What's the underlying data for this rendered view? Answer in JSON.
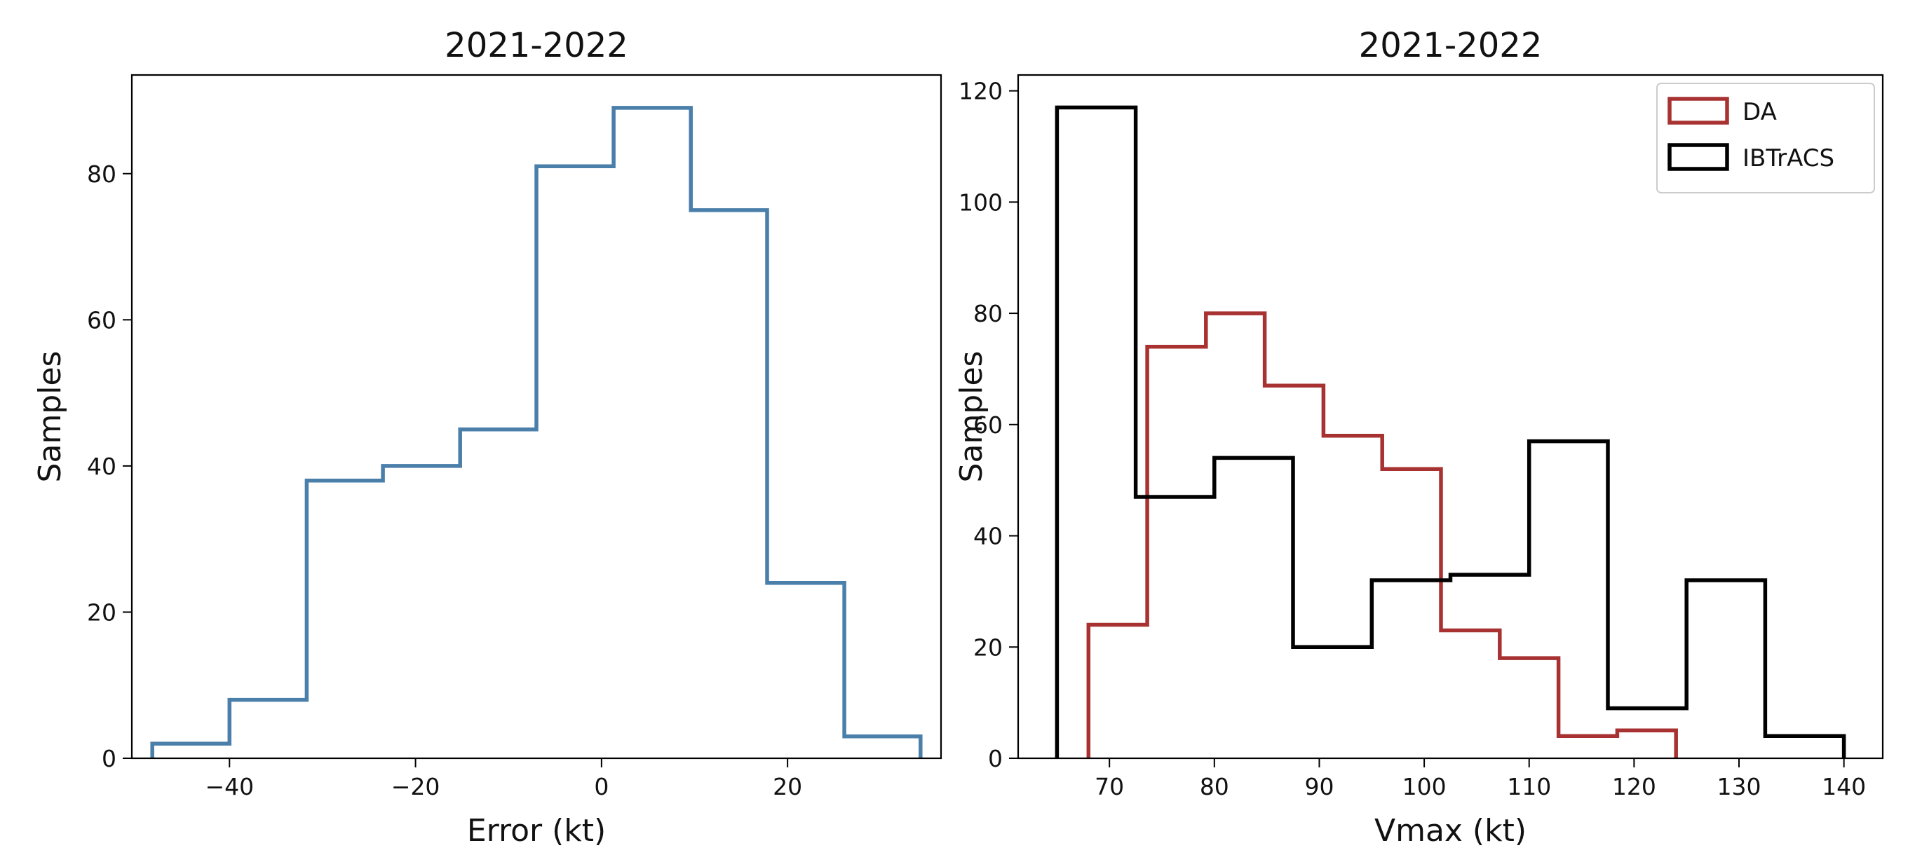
{
  "chart_data": [
    {
      "type": "histogram",
      "title": "2021-2022",
      "xlabel": "Error (kt)",
      "ylabel": "Samples",
      "xlim": [
        -50.5,
        36.5
      ],
      "ylim": [
        0,
        93.5
      ],
      "xticks": [
        -40,
        -20,
        0,
        20
      ],
      "xtick_labels": [
        "−40",
        "−20",
        "0",
        "20"
      ],
      "yticks": [
        0,
        20,
        40,
        60,
        80
      ],
      "ytick_labels": [
        "0",
        "20",
        "40",
        "60",
        "80"
      ],
      "grid": false,
      "series": [
        {
          "color": "#4A7FAA",
          "bin_edges": [
            -48.3,
            -40.0,
            -31.7,
            -23.5,
            -15.2,
            -7.0,
            1.3,
            9.6,
            17.8,
            26.1,
            34.3
          ],
          "counts": [
            2,
            8,
            38,
            40,
            45,
            81,
            89,
            75,
            24,
            3
          ]
        }
      ]
    },
    {
      "type": "histogram",
      "title": "2021-2022",
      "xlabel": "Vmax (kt)",
      "ylabel": "Samples",
      "xlim": [
        61.3,
        143.7
      ],
      "ylim": [
        0,
        122.85
      ],
      "xticks": [
        70,
        80,
        90,
        100,
        110,
        120,
        130,
        140
      ],
      "xtick_labels": [
        "70",
        "80",
        "90",
        "100",
        "110",
        "120",
        "130",
        "140"
      ],
      "yticks": [
        0,
        20,
        40,
        60,
        80,
        100,
        120
      ],
      "ytick_labels": [
        "0",
        "20",
        "40",
        "60",
        "80",
        "100",
        "120"
      ],
      "grid": false,
      "legend": "top-right",
      "series": [
        {
          "name": "DA",
          "color": "#A83232",
          "bin_edges": [
            68.0,
            73.6,
            79.2,
            84.8,
            90.4,
            96.0,
            101.6,
            107.2,
            112.8,
            118.4,
            124.0
          ],
          "counts": [
            24,
            74,
            80,
            67,
            58,
            52,
            23,
            18,
            4,
            5
          ]
        },
        {
          "name": "IBTrACS",
          "color": "#000000",
          "bin_edges": [
            65.0,
            72.5,
            80.0,
            87.5,
            95.0,
            102.5,
            110.0,
            117.5,
            125.0,
            132.5,
            140.0
          ],
          "counts": [
            117,
            47,
            54,
            20,
            32,
            33,
            57,
            9,
            32,
            4
          ]
        }
      ]
    }
  ]
}
